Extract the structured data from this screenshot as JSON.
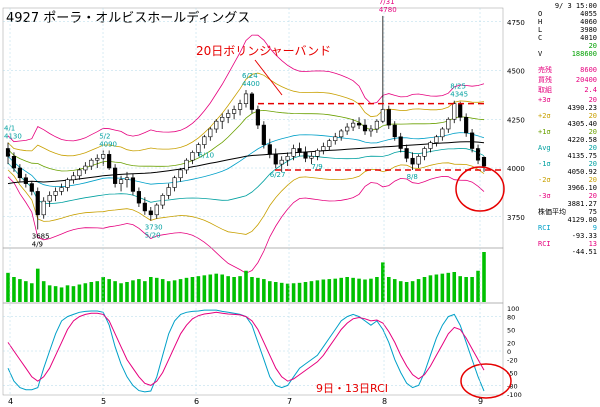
{
  "header": {
    "title": "4927  ポーラ・オルビスホールディングス"
  },
  "side_info": {
    "date": "9/ 3 15:00",
    "ohlc": [
      {
        "k": "O",
        "v": "4055"
      },
      {
        "k": "H",
        "v": "4060"
      },
      {
        "k": "L",
        "v": "3980"
      },
      {
        "k": "C",
        "v": "4010"
      },
      {
        "k": "",
        "v": "20"
      },
      {
        "k": "V",
        "v": "188600"
      }
    ],
    "rows": [
      {
        "k": "売残",
        "v": "8600",
        "color": "#e6007e"
      },
      {
        "k": "買残",
        "v": "20400",
        "color": "#e6007e"
      },
      {
        "k": "取組",
        "v": "2.4",
        "color": "#e6007e"
      },
      {
        "k": "+3σ",
        "v": "20",
        "v2": "4390.23",
        "color": "#e6007e"
      },
      {
        "k": "+2σ",
        "v": "20",
        "v2": "4305.40",
        "color": "#c8a000"
      },
      {
        "k": "+1σ",
        "v": "20",
        "v2": "4220.58",
        "color": "#6aa000"
      },
      {
        "k": "Avg",
        "v": "20",
        "v2": "4135.75",
        "color": "#00a0a0"
      },
      {
        "k": "-1σ",
        "v": "20",
        "v2": "4050.92",
        "color": "#00a0a0"
      },
      {
        "k": "-2σ",
        "v": "20",
        "v2": "3966.10",
        "color": "#c8a000"
      },
      {
        "k": "-3σ",
        "v": "20",
        "v2": "3881.27",
        "color": "#e6007e"
      },
      {
        "k": "株価平均",
        "v": "75",
        "v2": "4129.00",
        "color": "#000000"
      },
      {
        "k": "RCI",
        "v": "9",
        "v2": "-93.33",
        "color": "#00a0c8"
      },
      {
        "k": "RCI",
        "v": "13",
        "v2": "-44.51",
        "color": "#e6007e"
      }
    ]
  },
  "annotations": {
    "bollinger": "20日ボリンジャーバンド",
    "rci": "9日・13日RCI"
  },
  "chart_data": [
    {
      "type": "candlestick",
      "title": "4927  ポーラ・オルビスホールディングス",
      "x_ticks": [
        "4",
        "5",
        "6",
        "7",
        "8",
        "9"
      ],
      "y_ticks": [
        3750,
        4000,
        4250,
        4500,
        4750
      ],
      "ylim": [
        3600,
        4800
      ],
      "price_labels": [
        {
          "text": "4/1",
          "value": "4130"
        },
        {
          "text": "5/2",
          "value": "4090"
        },
        {
          "text": "6/24",
          "value": "4400"
        },
        {
          "text": "7/31",
          "value": "4780"
        },
        {
          "text": "8/25",
          "value": "4345"
        },
        {
          "text": "6/10",
          "value": ""
        },
        {
          "text": "6/27",
          "value": ""
        },
        {
          "text": "7/9",
          "value": ""
        },
        {
          "text": "8/8",
          "value": ""
        },
        {
          "text": "3685",
          "value": "4/9"
        },
        {
          "text": "3730",
          "value": "5/20"
        }
      ],
      "candles": [
        [
          4100,
          4130,
          4020,
          4060
        ],
        [
          4060,
          4080,
          3980,
          4000
        ],
        [
          4000,
          4020,
          3930,
          3950
        ],
        [
          3950,
          3970,
          3900,
          3920
        ],
        [
          3920,
          3930,
          3860,
          3880
        ],
        [
          3880,
          3900,
          3685,
          3760
        ],
        [
          3760,
          3850,
          3740,
          3830
        ],
        [
          3830,
          3880,
          3800,
          3860
        ],
        [
          3860,
          3900,
          3830,
          3880
        ],
        [
          3880,
          3920,
          3860,
          3900
        ],
        [
          3900,
          3950,
          3880,
          3940
        ],
        [
          3940,
          3980,
          3920,
          3960
        ],
        [
          3960,
          4000,
          3940,
          3990
        ],
        [
          3990,
          4030,
          3970,
          4010
        ],
        [
          4010,
          4050,
          3990,
          4040
        ],
        [
          4040,
          4070,
          4000,
          4050
        ],
        [
          4050,
          4090,
          4010,
          4070
        ],
        [
          4070,
          4090,
          3990,
          4000
        ],
        [
          4000,
          4020,
          3900,
          3920
        ],
        [
          3920,
          3960,
          3880,
          3940
        ],
        [
          3940,
          3980,
          3900,
          3950
        ],
        [
          3950,
          3970,
          3860,
          3880
        ],
        [
          3880,
          3900,
          3800,
          3820
        ],
        [
          3820,
          3850,
          3760,
          3780
        ],
        [
          3780,
          3800,
          3730,
          3760
        ],
        [
          3760,
          3820,
          3740,
          3810
        ],
        [
          3810,
          3870,
          3790,
          3860
        ],
        [
          3860,
          3920,
          3840,
          3900
        ],
        [
          3900,
          3960,
          3880,
          3950
        ],
        [
          3950,
          4000,
          3930,
          3990
        ],
        [
          3990,
          4050,
          3970,
          4040
        ],
        [
          4040,
          4090,
          4020,
          4080
        ],
        [
          4080,
          4130,
          4060,
          4120
        ],
        [
          4120,
          4170,
          4100,
          4160
        ],
        [
          4160,
          4210,
          4140,
          4200
        ],
        [
          4200,
          4250,
          4180,
          4240
        ],
        [
          4240,
          4280,
          4200,
          4260
        ],
        [
          4260,
          4300,
          4230,
          4280
        ],
        [
          4280,
          4320,
          4250,
          4300
        ],
        [
          4300,
          4350,
          4270,
          4330
        ],
        [
          4330,
          4400,
          4310,
          4380
        ],
        [
          4380,
          4390,
          4280,
          4300
        ],
        [
          4300,
          4320,
          4200,
          4220
        ],
        [
          4220,
          4240,
          4100,
          4120
        ],
        [
          4120,
          4150,
          4050,
          4070
        ],
        [
          4070,
          4100,
          4000,
          4020
        ],
        [
          4020,
          4060,
          3980,
          4040
        ],
        [
          4040,
          4080,
          4010,
          4060
        ],
        [
          4060,
          4120,
          4040,
          4100
        ],
        [
          4100,
          4130,
          4060,
          4080
        ],
        [
          4080,
          4110,
          4030,
          4050
        ],
        [
          4050,
          4080,
          4020,
          4060
        ],
        [
          4060,
          4100,
          4040,
          4090
        ],
        [
          4090,
          4130,
          4070,
          4110
        ],
        [
          4110,
          4150,
          4090,
          4140
        ],
        [
          4140,
          4180,
          4120,
          4160
        ],
        [
          4160,
          4200,
          4140,
          4190
        ],
        [
          4190,
          4230,
          4170,
          4210
        ],
        [
          4210,
          4250,
          4190,
          4230
        ],
        [
          4230,
          4260,
          4200,
          4220
        ],
        [
          4220,
          4250,
          4170,
          4190
        ],
        [
          4190,
          4220,
          4160,
          4200
        ],
        [
          4200,
          4250,
          4180,
          4240
        ],
        [
          4240,
          4780,
          4230,
          4300
        ],
        [
          4300,
          4320,
          4200,
          4220
        ],
        [
          4220,
          4240,
          4140,
          4160
        ],
        [
          4160,
          4180,
          4080,
          4100
        ],
        [
          4100,
          4120,
          4030,
          4050
        ],
        [
          4050,
          4080,
          3990,
          4020
        ],
        [
          4020,
          4070,
          4000,
          4060
        ],
        [
          4060,
          4110,
          4040,
          4100
        ],
        [
          4100,
          4140,
          4080,
          4130
        ],
        [
          4130,
          4170,
          4110,
          4160
        ],
        [
          4160,
          4210,
          4140,
          4200
        ],
        [
          4200,
          4260,
          4180,
          4250
        ],
        [
          4250,
          4345,
          4230,
          4330
        ],
        [
          4330,
          4340,
          4240,
          4260
        ],
        [
          4260,
          4280,
          4160,
          4180
        ],
        [
          4180,
          4200,
          4080,
          4100
        ],
        [
          4100,
          4120,
          4020,
          4040
        ],
        [
          4055,
          4060,
          3980,
          4010
        ]
      ],
      "volume": [
        70,
        60,
        55,
        50,
        45,
        80,
        50,
        40,
        38,
        35,
        40,
        38,
        42,
        45,
        48,
        50,
        60,
        55,
        50,
        45,
        48,
        52,
        55,
        50,
        60,
        58,
        55,
        50,
        52,
        55,
        58,
        60,
        62,
        64,
        66,
        68,
        66,
        62,
        60,
        62,
        75,
        60,
        58,
        55,
        50,
        48,
        46,
        44,
        45,
        46,
        48,
        50,
        52,
        54,
        55,
        56,
        58,
        60,
        58,
        56,
        54,
        56,
        60,
        95,
        60,
        55,
        50,
        48,
        50,
        55,
        60,
        64,
        66,
        68,
        70,
        72,
        62,
        60,
        60,
        75,
        120
      ],
      "ma_line": [
        3920,
        3925,
        3928,
        3930,
        3932,
        3930,
        3928,
        3930,
        3932,
        3935,
        3938,
        3940,
        3944,
        3948,
        3952,
        3956,
        3960,
        3963,
        3965,
        3967,
        3969,
        3970,
        3972,
        3973,
        3975,
        3978,
        3982,
        3986,
        3990,
        3995,
        4000,
        4006,
        4012,
        4018,
        4024,
        4030,
        4036,
        4042,
        4048,
        4054,
        4060,
        4064,
        4066,
        4068,
        4070,
        4072,
        4074,
        4076,
        4078,
        4080,
        4082,
        4084,
        4086,
        4088,
        4090,
        4092,
        4094,
        4096,
        4098,
        4100,
        4102,
        4104,
        4106,
        4108,
        4110,
        4112,
        4114,
        4116,
        4118,
        4120,
        4122,
        4124,
        4126,
        4128,
        4130,
        4132,
        4134,
        4135,
        4135,
        4133,
        4129
      ],
      "rci9": [
        -40,
        -70,
        -85,
        -90,
        -90,
        -85,
        -40,
        0,
        40,
        70,
        80,
        85,
        90,
        92,
        93,
        93,
        90,
        60,
        10,
        -30,
        -60,
        -80,
        -92,
        -95,
        -93,
        -60,
        -10,
        40,
        70,
        85,
        90,
        92,
        93,
        95,
        95,
        95,
        92,
        90,
        88,
        85,
        80,
        60,
        20,
        -20,
        -60,
        -80,
        -85,
        -80,
        -60,
        -40,
        -30,
        -20,
        -10,
        10,
        30,
        50,
        70,
        80,
        85,
        80,
        70,
        60,
        70,
        50,
        20,
        -20,
        -50,
        -75,
        -85,
        -80,
        -50,
        -10,
        30,
        60,
        80,
        85,
        60,
        20,
        -20,
        -60,
        -93
      ],
      "rci13": [
        20,
        0,
        -20,
        -40,
        -60,
        -70,
        -60,
        -40,
        -10,
        20,
        50,
        70,
        80,
        85,
        88,
        88,
        85,
        70,
        40,
        10,
        -20,
        -40,
        -60,
        -75,
        -80,
        -70,
        -50,
        -20,
        10,
        40,
        60,
        75,
        82,
        86,
        88,
        90,
        88,
        86,
        85,
        84,
        80,
        70,
        50,
        20,
        -10,
        -40,
        -60,
        -70,
        -65,
        -55,
        -45,
        -35,
        -25,
        -10,
        10,
        30,
        50,
        65,
        75,
        78,
        75,
        70,
        72,
        65,
        45,
        20,
        -10,
        -35,
        -55,
        -65,
        -55,
        -35,
        -10,
        15,
        40,
        55,
        50,
        30,
        5,
        -20,
        -44.51
      ],
      "rci_y_ticks": [
        100,
        80,
        50,
        20,
        0,
        -20,
        -50,
        -80,
        -100
      ],
      "reference_levels": [
        4330,
        3990
      ]
    }
  ]
}
